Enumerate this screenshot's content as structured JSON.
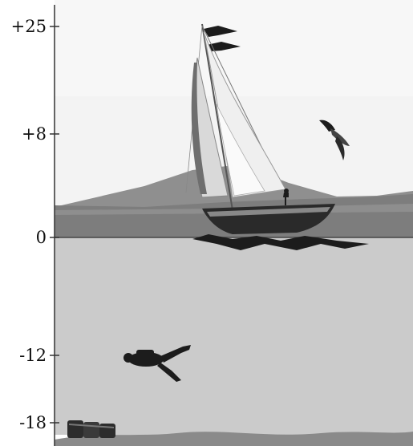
{
  "axis": {
    "ticks": [
      {
        "label": "+25",
        "value": 25
      },
      {
        "label": "+8",
        "value": 8
      },
      {
        "label": "0",
        "value": 0
      },
      {
        "label": "-12",
        "value": -12
      },
      {
        "label": "-18",
        "value": -18
      }
    ]
  },
  "colors": {
    "sky": "#f4f4f4",
    "land": "#8f8f8f",
    "sea_surface": "#7a7a7a",
    "underwater": "#c9c9c9",
    "seabed": "#8a8a8a",
    "silhouette": "#1c1c1c"
  },
  "scene": {
    "objects": [
      "sailboat",
      "seagull",
      "scuba-diver",
      "treasure-chest"
    ]
  }
}
